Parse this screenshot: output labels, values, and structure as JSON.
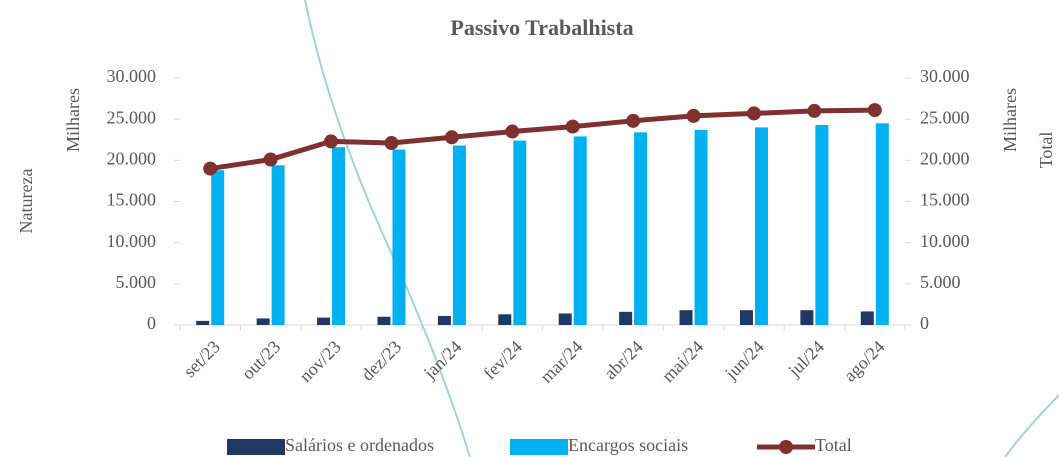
{
  "chart_data": {
    "type": "bar",
    "title": "Passivo Trabalhista",
    "y_axis_label": "Natureza",
    "y_display_units": "Milhares",
    "y2_display_units": "Milhares",
    "y2_axis_label": "Total",
    "categories": [
      "set/23",
      "out/23",
      "nov/23",
      "dez/23",
      "jan/24",
      "fev/24",
      "mar/24",
      "abr/24",
      "mai/24",
      "jun/24",
      "jul/24",
      "ago/24"
    ],
    "series": [
      {
        "name": "Salários e ordenados",
        "type": "bar",
        "color": "#1f3864",
        "values": [
          500,
          800,
          900,
          1000,
          1100,
          1300,
          1400,
          1600,
          1800,
          1800,
          1800,
          1650
        ]
      },
      {
        "name": "Encargos sociais",
        "type": "bar",
        "color": "#00b0f0",
        "values": [
          18800,
          19400,
          21600,
          21300,
          21800,
          22400,
          22900,
          23400,
          23700,
          24000,
          24300,
          24500
        ]
      },
      {
        "name": "Total",
        "type": "line",
        "axis": "y2",
        "color": "#7f3030",
        "values": [
          19000,
          20100,
          22300,
          22100,
          22800,
          23500,
          24100,
          24800,
          25400,
          25700,
          26000,
          26100
        ]
      }
    ],
    "ylim": [
      0,
      30000
    ],
    "yticks": [
      0,
      {
        "value": 5000,
        "label": "5.000"
      },
      {
        "value": 10000,
        "label": "10.000"
      },
      {
        "value": 15000,
        "label": "15.000"
      },
      {
        "value": 20000,
        "label": "20.000"
      },
      {
        "value": 25000,
        "label": "25.000"
      },
      {
        "value": 30000,
        "label": "30.000"
      }
    ],
    "y2lim": [
      0,
      30000
    ],
    "y2ticks": [
      0,
      {
        "value": 5000,
        "label": "5.000"
      },
      {
        "value": 10000,
        "label": "10.000"
      },
      {
        "value": 15000,
        "label": "15.000"
      },
      {
        "value": 20000,
        "label": "20.000"
      },
      {
        "value": 25000,
        "label": "25.000"
      },
      {
        "value": 30000,
        "label": "30.000"
      }
    ],
    "grid": false,
    "legend": "bottom"
  }
}
